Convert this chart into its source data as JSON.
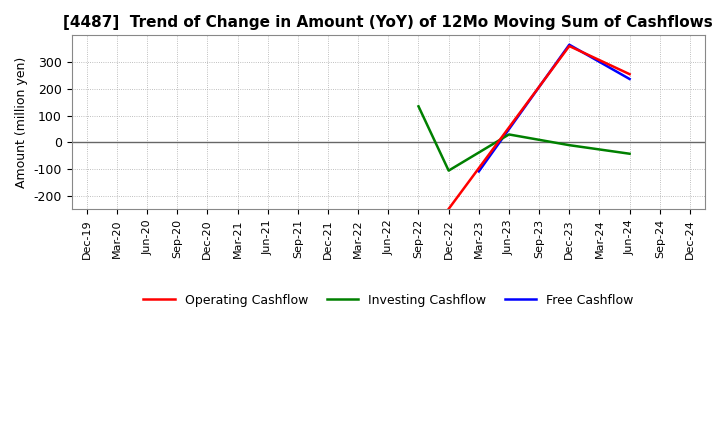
{
  "title": "[4487]  Trend of Change in Amount (YoY) of 12Mo Moving Sum of Cashflows",
  "ylabel": "Amount (million yen)",
  "background_color": "#ffffff",
  "grid_color": "#aaaaaa",
  "x_ticks": [
    "Dec-19",
    "Mar-20",
    "Jun-20",
    "Sep-20",
    "Dec-20",
    "Mar-21",
    "Jun-21",
    "Sep-21",
    "Dec-21",
    "Mar-22",
    "Jun-22",
    "Sep-22",
    "Dec-22",
    "Mar-23",
    "Jun-23",
    "Sep-23",
    "Dec-23",
    "Mar-24",
    "Jun-24",
    "Sep-24",
    "Dec-24"
  ],
  "operating_cashflow": {
    "x": [
      "Dec-22",
      "Dec-23",
      "Jun-24"
    ],
    "y": [
      -248,
      360,
      255
    ],
    "color": "#ff0000"
  },
  "investing_cashflow": {
    "x": [
      "Sep-22",
      "Dec-22",
      "Jun-23",
      "Dec-23",
      "Jun-24"
    ],
    "y": [
      135,
      -105,
      30,
      -10,
      -42
    ],
    "color": "#008000"
  },
  "free_cashflow": {
    "x": [
      "Mar-23",
      "Dec-23",
      "Jun-24"
    ],
    "y": [
      -108,
      365,
      237
    ],
    "color": "#0000ff"
  },
  "ylim": [
    -250,
    400
  ],
  "yticks": [
    -200,
    -100,
    0,
    100,
    200,
    300
  ],
  "legend_labels": [
    "Operating Cashflow",
    "Investing Cashflow",
    "Free Cashflow"
  ],
  "legend_colors": [
    "#ff0000",
    "#008000",
    "#0000ff"
  ],
  "title_fontsize": 11,
  "axis_fontsize": 9,
  "tick_fontsize": 8
}
